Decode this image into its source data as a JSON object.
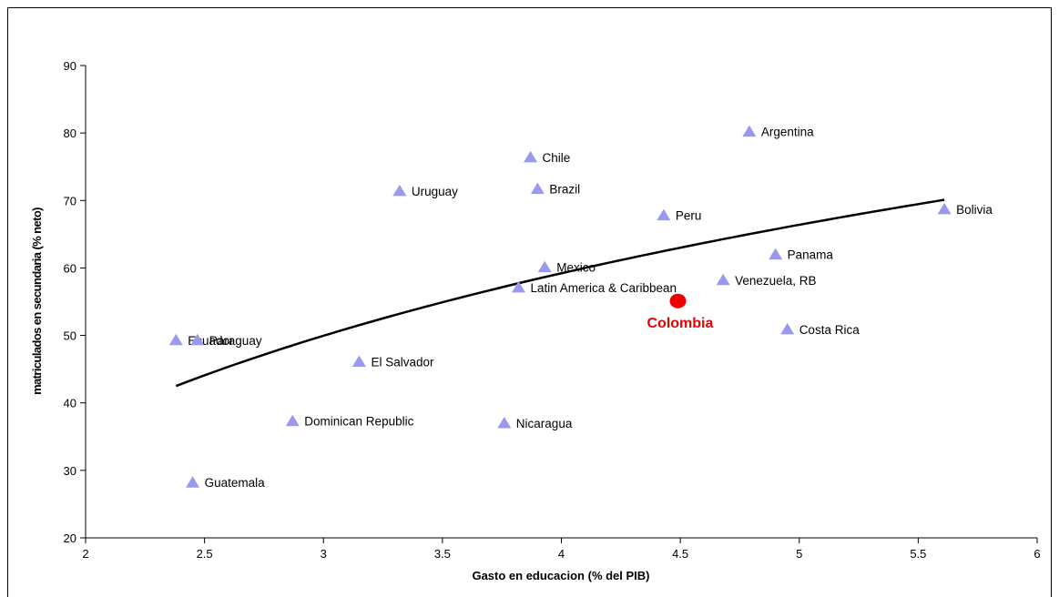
{
  "chart_data": {
    "type": "scatter",
    "title": "",
    "xlabel": "Gasto en educacion (% del PIB)",
    "ylabel": "matriculados en secundaria (% neto)",
    "xlim": [
      2,
      6
    ],
    "ylim": [
      20,
      90
    ],
    "x_ticks": [
      2,
      2.5,
      3,
      3.5,
      4,
      4.5,
      5,
      5.5,
      6
    ],
    "y_ticks": [
      20,
      30,
      40,
      50,
      60,
      70,
      80,
      90
    ],
    "grid": false,
    "legend": "none",
    "marker_color": "#9999ee",
    "points": [
      {
        "label": "Argentina",
        "x": 4.79,
        "y": 80.2
      },
      {
        "label": "Chile",
        "x": 3.87,
        "y": 76.4
      },
      {
        "label": "Uruguay",
        "x": 3.32,
        "y": 71.4
      },
      {
        "label": "Brazil",
        "x": 3.9,
        "y": 71.7
      },
      {
        "label": "Peru",
        "x": 4.43,
        "y": 67.8
      },
      {
        "label": "Bolivia",
        "x": 5.61,
        "y": 68.7
      },
      {
        "label": "Panama",
        "x": 4.9,
        "y": 62.0
      },
      {
        "label": "Mexico",
        "x": 3.93,
        "y": 60.1
      },
      {
        "label": "Venezuela, RB",
        "x": 4.68,
        "y": 58.2
      },
      {
        "label": "Latin America & Caribbean",
        "x": 3.82,
        "y": 57.1
      },
      {
        "label": "Costa Rica",
        "x": 4.95,
        "y": 50.9
      },
      {
        "label": "Ecuador",
        "x": 2.38,
        "y": 49.3
      },
      {
        "label": "Paraguay",
        "x": 2.47,
        "y": 49.3
      },
      {
        "label": "El Salvador",
        "x": 3.15,
        "y": 46.1
      },
      {
        "label": "Dominican Republic",
        "x": 2.87,
        "y": 37.3
      },
      {
        "label": "Nicaragua",
        "x": 3.76,
        "y": 37.0
      },
      {
        "label": "Guatemala",
        "x": 2.45,
        "y": 28.2
      }
    ],
    "highlight": {
      "label": "Colombia",
      "x": 4.49,
      "y": 55.1,
      "color": "#ee0000"
    },
    "trendline": {
      "type": "logarithmic",
      "x_start": 2.38,
      "x_end": 5.61,
      "y_start": 42.5,
      "y_end": 70.1,
      "color": "#000000"
    }
  }
}
